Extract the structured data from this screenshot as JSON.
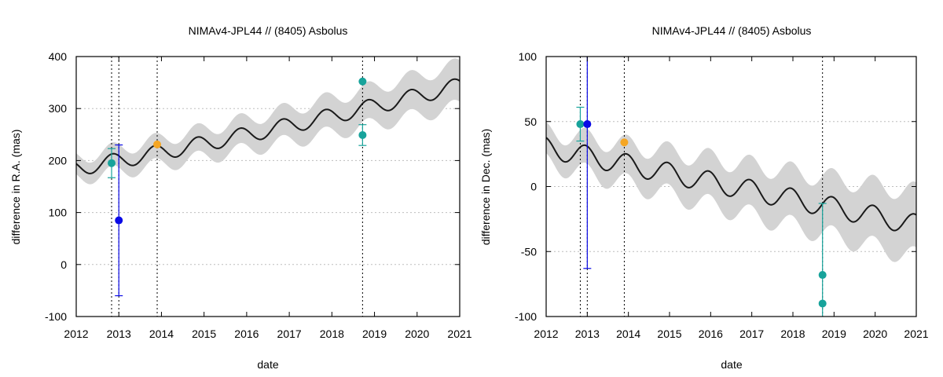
{
  "chart_data": [
    {
      "type": "line",
      "title": "NIMAv4-JPL44 // (8405) Asbolus",
      "xlabel": "date",
      "ylabel": "difference in R.A. (mas)",
      "xlim": [
        2012,
        2021
      ],
      "ylim": [
        -100,
        400
      ],
      "x_ticks": [
        "2012",
        "2013",
        "2014",
        "2015",
        "2016",
        "2017",
        "2018",
        "2019",
        "2020",
        "2021"
      ],
      "y_ticks": [
        "-100",
        "0",
        "100",
        "200",
        "300",
        "400"
      ],
      "grid": true,
      "model": {
        "name": "NIMAv4-JPL44",
        "trend_start": 185,
        "trend_slope": 15,
        "trend_curve": 0.3,
        "amplitude": 15,
        "period_years": 1.0,
        "phase_peak": 0.85,
        "band_half_width_start": 20,
        "band_half_width_end": 40,
        "color": "#1a1a1a",
        "band_color": "#d3d3d3"
      },
      "vlines": [
        2012.83,
        2013.0,
        2013.9,
        2018.72
      ],
      "points": [
        {
          "x": 2012.83,
          "y": 195,
          "err": 28,
          "color": "#17a39b"
        },
        {
          "x": 2013.0,
          "y": 85,
          "err": 145,
          "color": "#0a0ae6"
        },
        {
          "x": 2013.9,
          "y": 231,
          "err": 0,
          "color": "#f5a623"
        },
        {
          "x": 2018.72,
          "y": 352,
          "err": 0,
          "color": "#17a39b"
        },
        {
          "x": 2018.72,
          "y": 249,
          "err": 20,
          "color": "#17a39b"
        }
      ]
    },
    {
      "type": "line",
      "title": "NIMAv4-JPL44 // (8405) Asbolus",
      "xlabel": "date",
      "ylabel": "difference in Dec. (mas)",
      "xlim": [
        2012,
        2021
      ],
      "ylim": [
        -100,
        100
      ],
      "x_ticks": [
        "2012",
        "2013",
        "2014",
        "2015",
        "2016",
        "2017",
        "2018",
        "2019",
        "2020",
        "2021"
      ],
      "y_ticks": [
        "-100",
        "-50",
        "0",
        "50",
        "100"
      ],
      "grid": true,
      "model": {
        "name": "NIMAv4-JPL44",
        "trend_start": 30,
        "trend_slope": -6.6,
        "trend_curve": 0,
        "amplitude": 8,
        "period_years": 1.0,
        "phase_peak": 0.95,
        "band_half_width_start": 12,
        "band_half_width_end": 25,
        "color": "#1a1a1a",
        "band_color": "#d3d3d3"
      },
      "vlines": [
        2012.83,
        2013.0,
        2013.9,
        2018.72
      ],
      "points": [
        {
          "x": 2012.83,
          "y": 48,
          "err": 13,
          "color": "#17a39b"
        },
        {
          "x": 2013.0,
          "y": 48,
          "err": 111,
          "color": "#0a0ae6"
        },
        {
          "x": 2013.9,
          "y": 34,
          "err": 0,
          "color": "#f5a623"
        },
        {
          "x": 2018.72,
          "y": -68,
          "err": 55,
          "color": "#17a39b"
        },
        {
          "x": 2018.72,
          "y": -90,
          "err": 0,
          "color": "#17a39b"
        }
      ]
    }
  ]
}
